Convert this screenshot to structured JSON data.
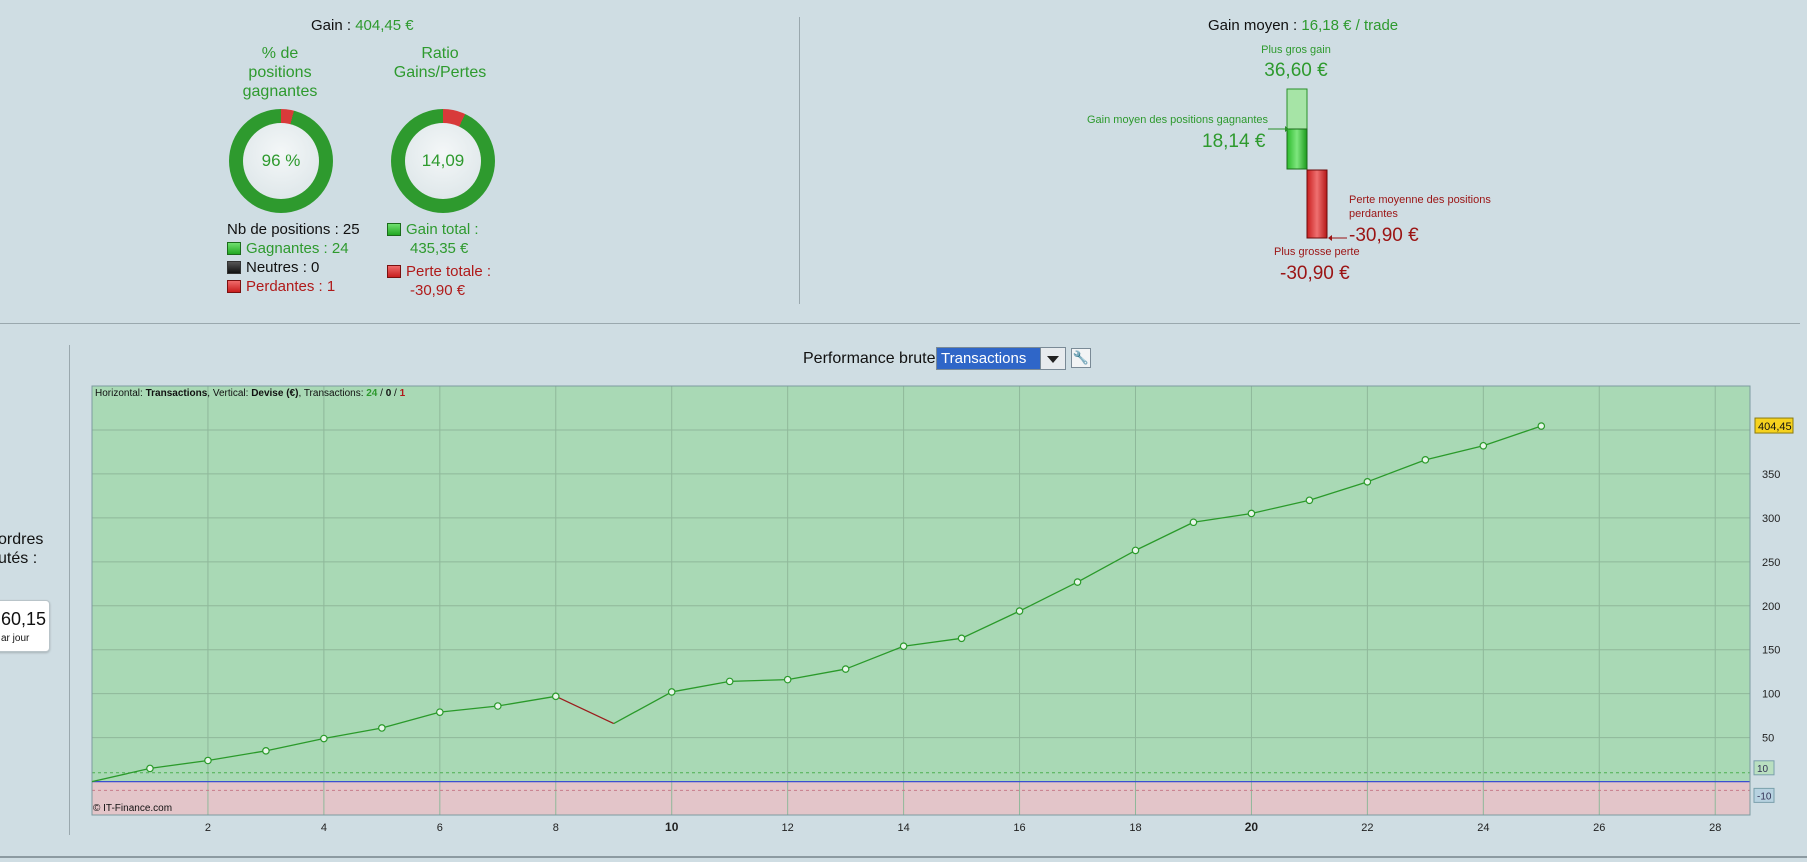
{
  "summary": {
    "gain_label": "Gain : ",
    "gain_value": "404,45 €",
    "pct_title": "% de\npositions\ngagnantes",
    "pct_value": "96 %",
    "pct_fraction": 0.96,
    "ratio_title": "Ratio\nGains/Pertes",
    "ratio_value": "14,09",
    "ratio_fraction": 0.93,
    "nb_positions": "Nb de positions : 25",
    "gagnantes": "Gagnantes : 24",
    "neutres": "Neutres : 0",
    "perdantes": "Perdantes : 1",
    "gain_total_label": "Gain total :",
    "gain_total_value": "435,35 €",
    "perte_totale_label": "Perte totale :",
    "perte_totale_value": "-30,90 €"
  },
  "gain_moyen": {
    "label": "Gain moyen : ",
    "value": "16,18 € / trade",
    "plus_gros_gain_label": "Plus gros gain",
    "plus_gros_gain_value": "36,60 €",
    "gain_moyen_gagnantes_label": "Gain moyen des positions gagnantes",
    "gain_moyen_gagnantes_value": "18,14 €",
    "perte_moyenne_label": "Perte moyenne des positions\nperdantes",
    "perte_moyenne_value": "-30,90 €",
    "plus_grosse_perte_label": "Plus grosse perte",
    "plus_grosse_perte_value": "-30,90 €",
    "max_gain": 36.6,
    "avg_gain": 18.14,
    "avg_loss": 30.9,
    "max_loss": 30.9
  },
  "left_panel": {
    "ordres_line1": "ordres",
    "ordres_line2": "utés :",
    "card_value": "60,15",
    "card_sub": "ar jour"
  },
  "performance": {
    "title": "Performance brute",
    "selected": "Transactions",
    "info_horizontal_label": "Horizontal: ",
    "info_horizontal_value": "Transactions",
    "info_vertical_label": ", Vertical: ",
    "info_vertical_value": "Devise (€)",
    "info_transactions_label": ", Transactions: ",
    "info_win": "24",
    "info_slash1": " / ",
    "info_neutral": "0",
    "info_slash2": " / ",
    "info_loss": "1",
    "copyright": "© IT-Finance.com"
  },
  "colors": {
    "gain": "#2e9a2e",
    "loss": "#b01a1a",
    "plot_positive": "#a9d9b5",
    "plot_negative": "#e3c5c9",
    "zero_line": "#3a4fd0"
  },
  "chart_data": {
    "type": "line",
    "xlabel": "",
    "ylabel": "",
    "xlim": [
      0,
      28.6
    ],
    "ylim": [
      -38,
      450
    ],
    "x_ticks": [
      2,
      4,
      6,
      8,
      10,
      12,
      14,
      16,
      18,
      20,
      22,
      24,
      26,
      28
    ],
    "x_bold_ticks": [
      10,
      20
    ],
    "y_ticks": [
      50,
      100,
      150,
      200,
      250,
      300,
      350
    ],
    "y_reference_labels": [
      "10",
      "-10"
    ],
    "y_reference_values": [
      10,
      -10
    ],
    "last_value_label": "404,45",
    "grid": true,
    "x": [
      0,
      1,
      2,
      3,
      4,
      5,
      6,
      7,
      8,
      9,
      10,
      11,
      12,
      13,
      14,
      15,
      16,
      17,
      18,
      19,
      20,
      21,
      22,
      23,
      24,
      25
    ],
    "y": [
      0,
      15,
      24,
      35,
      49,
      61,
      79,
      86,
      97,
      66,
      102,
      114,
      116,
      128,
      154,
      163,
      194,
      227,
      263,
      295,
      305,
      320,
      341,
      366,
      382,
      404.45
    ],
    "loss_segment_index": 8
  }
}
